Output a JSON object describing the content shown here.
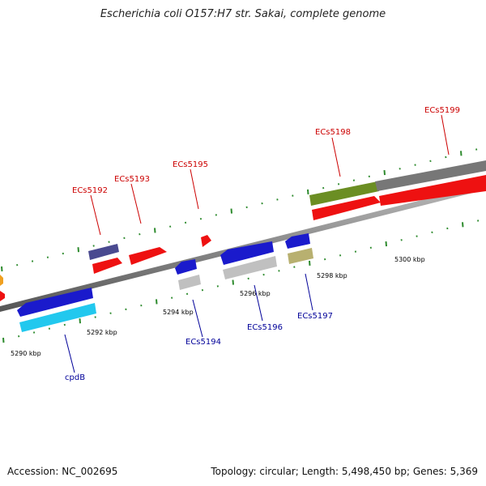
{
  "title": "Escherichia coli O157:H7 str. Sakai, complete genome",
  "footer": {
    "accession": "Accession: NC_002695",
    "summary": "Topology: circular; Length: 5,498,450 bp; Genes: 5,369"
  },
  "colors": {
    "backbone": "#888888",
    "tick": "#2e8b2e",
    "label_top": "#cc0000",
    "label_bottom": "#000099"
  },
  "tick_labels": [
    "5290 kbp",
    "5292 kbp",
    "5294 kbp",
    "5296 kbp",
    "5298 kbp",
    "5300 kbp"
  ],
  "gene_labels": {
    "top": [
      "ECs5192",
      "ECs5193",
      "ECs5195",
      "ECs5198",
      "ECs5199"
    ],
    "bottom": [
      "cpdB",
      "ECs5194",
      "ECs5196",
      "ECs5197"
    ]
  },
  "features": [
    {
      "name": "orange-gene-left",
      "color": "#f0a020",
      "strand": "forward"
    },
    {
      "name": "red-gene-left",
      "color": "#ff0000",
      "strand": "forward"
    },
    {
      "name": "cpdB-gene",
      "color": "#1a1acc",
      "strand": "reverse"
    },
    {
      "name": "cpdB-product",
      "color": "#22c8ee",
      "strand": "reverse"
    },
    {
      "name": "ECs5192-gene",
      "color": "#4a4a90",
      "strand": "forward"
    },
    {
      "name": "ECs5192-product",
      "color": "#ee1111",
      "strand": "forward"
    },
    {
      "name": "ECs5193-gene",
      "color": "#ee1111",
      "strand": "forward"
    },
    {
      "name": "ECs5194-gene",
      "color": "#1a1acc",
      "strand": "reverse"
    },
    {
      "name": "ECs5194-product",
      "color": "#c0c0c0",
      "strand": "reverse"
    },
    {
      "name": "ECs5195-gene",
      "color": "#ee1111",
      "strand": "forward"
    },
    {
      "name": "ECs5196-gene",
      "color": "#1a1acc",
      "strand": "reverse"
    },
    {
      "name": "ECs5196-product",
      "color": "#c0c0c0",
      "strand": "reverse"
    },
    {
      "name": "ECs5197-gene",
      "color": "#1a1acc",
      "strand": "reverse"
    },
    {
      "name": "ECs5197-product",
      "color": "#b8b070",
      "strand": "reverse"
    },
    {
      "name": "ECs5198-gene",
      "color": "#6b8e23",
      "strand": "forward"
    },
    {
      "name": "ECs5198-product",
      "color": "#ee1111",
      "strand": "forward"
    },
    {
      "name": "ECs5199-gene",
      "color": "#777777",
      "strand": "forward"
    },
    {
      "name": "ECs5199-product",
      "color": "#ee1111",
      "strand": "forward"
    }
  ]
}
